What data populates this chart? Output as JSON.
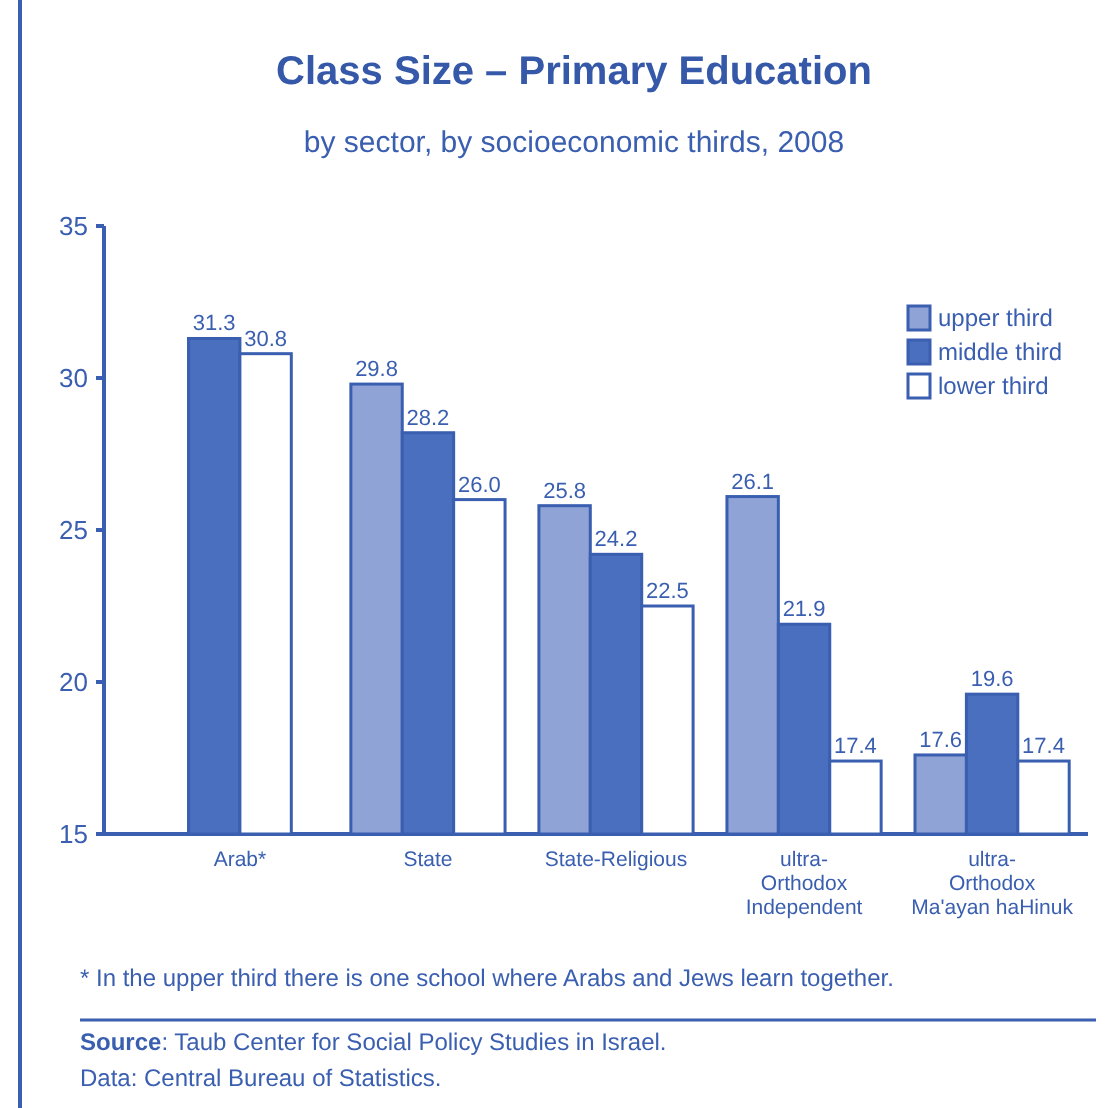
{
  "chart_data": {
    "type": "bar",
    "title": "Class Size – Primary Education",
    "subtitle": "by sector, by socioeconomic thirds, 2008",
    "categories": [
      "Arab*",
      "State",
      "State-Religious",
      "ultra-\nOrthodox\nIndependent",
      "ultra-\nOrthodox\nMa'ayan haHinuk"
    ],
    "series": [
      {
        "name": "upper third",
        "color": "#8fa3d6",
        "values": [
          null,
          29.8,
          25.8,
          26.1,
          17.6
        ],
        "value_labels": [
          null,
          "29.8",
          "25.8",
          "26.1",
          "17.6"
        ]
      },
      {
        "name": "middle third",
        "color": "#4a6fbf",
        "values": [
          31.3,
          28.2,
          24.2,
          21.9,
          19.6
        ],
        "value_labels": [
          "31.3",
          "28.2",
          "24.2",
          "21.9",
          "19.6"
        ]
      },
      {
        "name": "lower third",
        "color": "#ffffff",
        "values": [
          30.8,
          26.0,
          22.5,
          17.4,
          17.4
        ],
        "value_labels": [
          "30.8",
          "26.0",
          "22.5",
          "17.4",
          "17.4"
        ]
      }
    ],
    "ylim": [
      15,
      35
    ],
    "yticks": [
      15,
      20,
      25,
      30,
      35
    ],
    "grid": false,
    "legend": "top right",
    "annotations": [
      "* In the upper third there is one school where Arabs and Jews learn together.",
      "Source: Taub Center for Social Policy Studies in Israel.",
      "Data: Central Bureau of Statistics."
    ]
  }
}
